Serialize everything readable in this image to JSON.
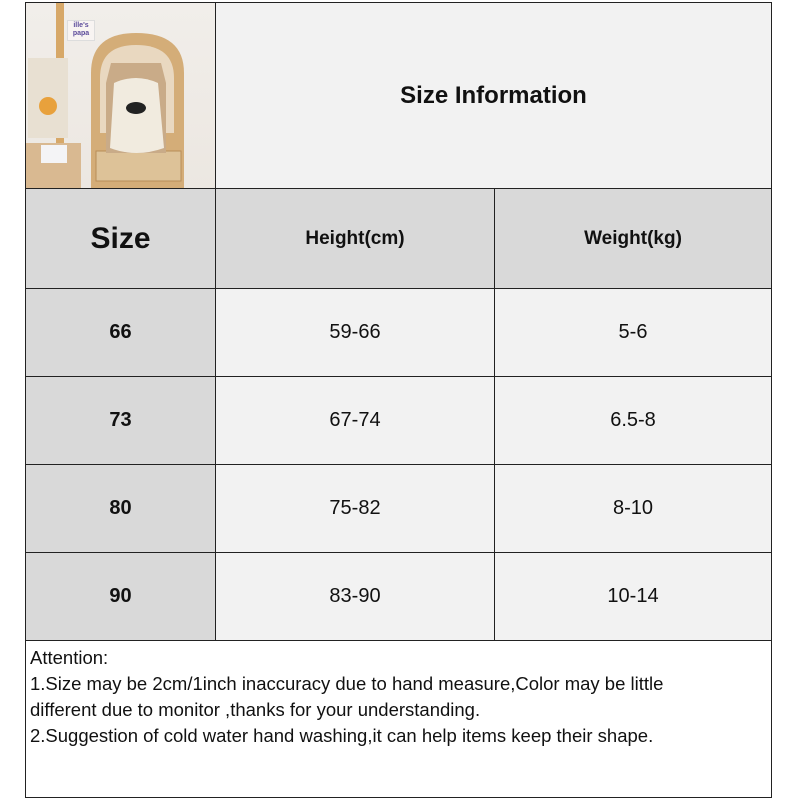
{
  "title": "Size Information",
  "headers": {
    "size": "Size",
    "height": "Height(cm)",
    "weight": "Weight(kg)"
  },
  "rows": [
    {
      "size": "66",
      "height": "59-66",
      "weight": "5-6"
    },
    {
      "size": "73",
      "height": "67-74",
      "weight": "6.5-8"
    },
    {
      "size": "80",
      "height": "75-82",
      "weight": "8-10"
    },
    {
      "size": "90",
      "height": "83-90",
      "weight": "10-14"
    }
  ],
  "notes": {
    "heading": "Attention:",
    "line1a": "1.Size may be 2cm/1inch inaccuracy due to hand measure,Color may be little",
    "line1b": "different due to monitor ,thanks for your understanding.",
    "line2": "2.Suggestion of cold water hand washing,it can help items keep their shape."
  },
  "photo": {
    "sign_text": "ille's papa"
  },
  "colors": {
    "header_gray": "#d9d9d9",
    "cell_light": "#f2f2f2",
    "border": "#222222"
  }
}
